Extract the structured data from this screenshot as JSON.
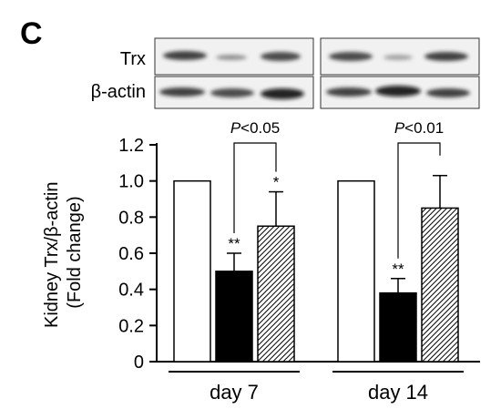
{
  "panel_label": "C",
  "blot": {
    "labels": [
      "Trx",
      "β-actin"
    ]
  },
  "chart_data": {
    "type": "bar",
    "ylabel_lines": [
      "Kidney Trx/β-actin",
      "(Fold change)"
    ],
    "ylim": [
      0,
      1.2
    ],
    "yticks": [
      "0",
      "0.2",
      "0.4",
      "0.6",
      "0.8",
      "1.0",
      "1.2"
    ],
    "ytick_values": [
      0,
      0.2,
      0.4,
      0.6,
      0.8,
      1.0,
      1.2
    ],
    "groups": [
      "day 7",
      "day 14"
    ],
    "bar_styles": [
      "white",
      "black",
      "hatched"
    ],
    "values": [
      [
        1.0,
        0.5,
        0.75
      ],
      [
        1.0,
        0.38,
        0.85
      ]
    ],
    "errors": [
      [
        0,
        0.1,
        0.19
      ],
      [
        0,
        0.08,
        0.18
      ]
    ],
    "significance_marks": [
      [
        "",
        "**",
        "*"
      ],
      [
        "",
        "**",
        ""
      ]
    ],
    "comparison_labels": [
      "P<0.05",
      "P<0.01"
    ],
    "comparison_italic": "P",
    "comparison_rest": [
      "<0.05",
      "<0.01"
    ]
  }
}
